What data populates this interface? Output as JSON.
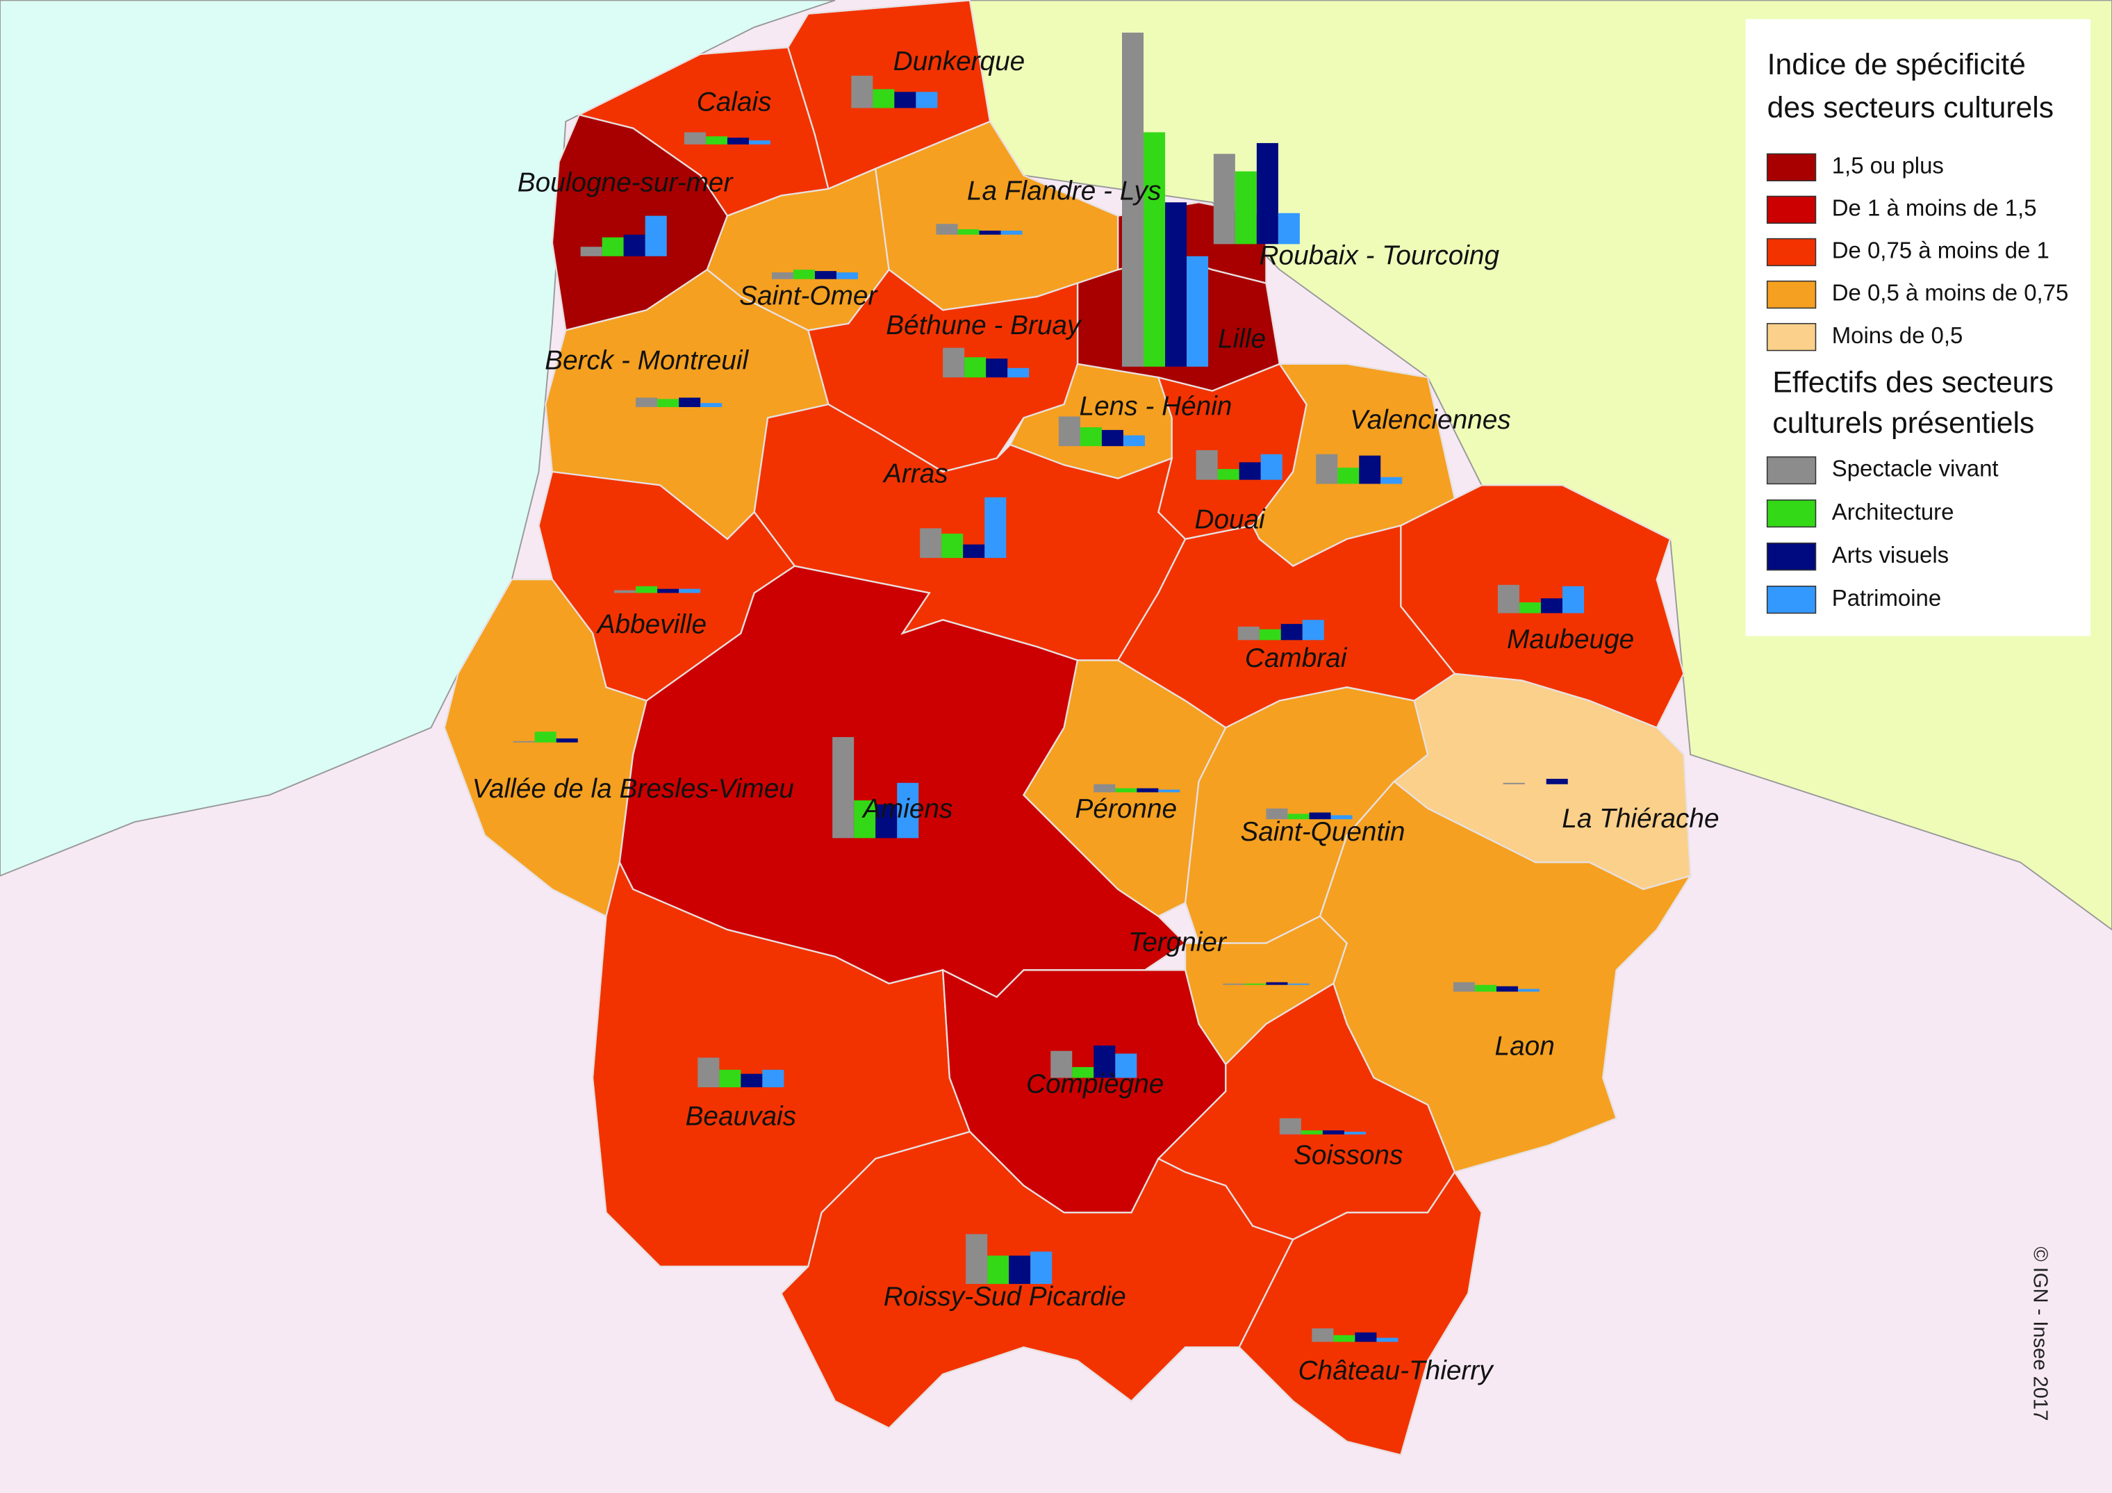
{
  "legend": {
    "title_lines": [
      "Indice de spécificité",
      "des secteurs culturels"
    ],
    "classes": [
      {
        "label": "1,5 ou plus",
        "color": "#a80000"
      },
      {
        "label": "De 1 à moins de 1,5",
        "color": "#cc0000"
      },
      {
        "label": "De 0,75 à moins de 1",
        "color": "#f23300"
      },
      {
        "label": "De 0,5 à moins de 0,75",
        "color": "#f5a020"
      },
      {
        "label": "Moins de 0,5",
        "color": "#fad08a"
      }
    ],
    "size_title_lines": [
      "Effectifs des secteurs",
      "culturels présentiels"
    ],
    "series": [
      {
        "name": "Spectacle vivant",
        "color": "#8c8c8c"
      },
      {
        "name": "Architecture",
        "color": "#33d916"
      },
      {
        "name": "Arts visuels",
        "color": "#000a80"
      },
      {
        "name": "Patrimoine",
        "color": "#3399ff"
      }
    ]
  },
  "zones": [
    {
      "name": "Dunkerque",
      "color": "#f23300",
      "bars": [
        24,
        14,
        12,
        12
      ]
    },
    {
      "name": "Calais",
      "color": "#f23300",
      "bars": [
        9,
        6,
        5,
        3
      ]
    },
    {
      "name": "Boulogne-sur-mer",
      "color": "#a80000",
      "bars": [
        7,
        14,
        16,
        30
      ]
    },
    {
      "name": "Saint-Omer",
      "color": "#f5a020",
      "bars": [
        5,
        7,
        6,
        5
      ]
    },
    {
      "name": "La Flandre - Lys",
      "color": "#f5a020",
      "bars": [
        8,
        4,
        3,
        3
      ]
    },
    {
      "name": "Lille",
      "color": "#a80000",
      "bars": [
        248,
        174,
        122,
        82
      ]
    },
    {
      "name": "Roubaix - Tourcoing",
      "color": "#a80000",
      "bars": [
        67,
        54,
        75,
        23
      ]
    },
    {
      "name": "Béthune - Bruay",
      "color": "#f23300",
      "bars": [
        22,
        15,
        14,
        7
      ]
    },
    {
      "name": "Berck - Montreuil",
      "color": "#f5a020",
      "bars": [
        7,
        6,
        7,
        3
      ]
    },
    {
      "name": "Lens - Hénin",
      "color": "#f5a020",
      "bars": [
        22,
        14,
        12,
        8
      ]
    },
    {
      "name": "Douai",
      "color": "#f23300",
      "bars": [
        22,
        8,
        13,
        19
      ]
    },
    {
      "name": "Valenciennes",
      "color": "#f5a020",
      "bars": [
        22,
        12,
        21,
        5
      ]
    },
    {
      "name": "Arras",
      "color": "#f23300",
      "bars": [
        22,
        18,
        10,
        45
      ]
    },
    {
      "name": "Abbeville",
      "color": "#f23300",
      "bars": [
        2,
        5,
        3,
        3
      ]
    },
    {
      "name": "Maubeuge",
      "color": "#f23300",
      "bars": [
        21,
        8,
        11,
        20
      ]
    },
    {
      "name": "Cambrai",
      "color": "#f23300",
      "bars": [
        10,
        8,
        12,
        15
      ]
    },
    {
      "name": "Vallée de la Bresles-Vimeu",
      "color": "#f5a020",
      "bars": [
        1,
        8,
        3,
        0
      ]
    },
    {
      "name": "Amiens",
      "color": "#cc0000",
      "bars": [
        75,
        28,
        25,
        41
      ]
    },
    {
      "name": "Péronne",
      "color": "#f5a020",
      "bars": [
        6,
        3,
        3,
        2
      ]
    },
    {
      "name": "Saint-Quentin",
      "color": "#f5a020",
      "bars": [
        8,
        4,
        5,
        3
      ]
    },
    {
      "name": "La Thiérache",
      "color": "#fad08a",
      "bars": [
        1,
        0,
        4,
        0
      ]
    },
    {
      "name": "Tergnier",
      "color": "#f5a020",
      "bars": [
        1,
        1,
        2,
        1
      ]
    },
    {
      "name": "Laon",
      "color": "#f5a020",
      "bars": [
        7,
        5,
        4,
        2
      ]
    },
    {
      "name": "Beauvais",
      "color": "#f23300",
      "bars": [
        22,
        13,
        10,
        13
      ]
    },
    {
      "name": "Compiègne",
      "color": "#cc0000",
      "bars": [
        20,
        8,
        24,
        18
      ]
    },
    {
      "name": "Soissons",
      "color": "#f23300",
      "bars": [
        12,
        3,
        3,
        2
      ]
    },
    {
      "name": "Roissy-Sud Picardie",
      "color": "#f23300",
      "bars": [
        37,
        21,
        21,
        24
      ]
    },
    {
      "name": "Château-Thierry",
      "color": "#f23300",
      "bars": [
        10,
        5,
        7,
        3
      ]
    }
  ],
  "credit": "© IGN - Insee 2017"
}
